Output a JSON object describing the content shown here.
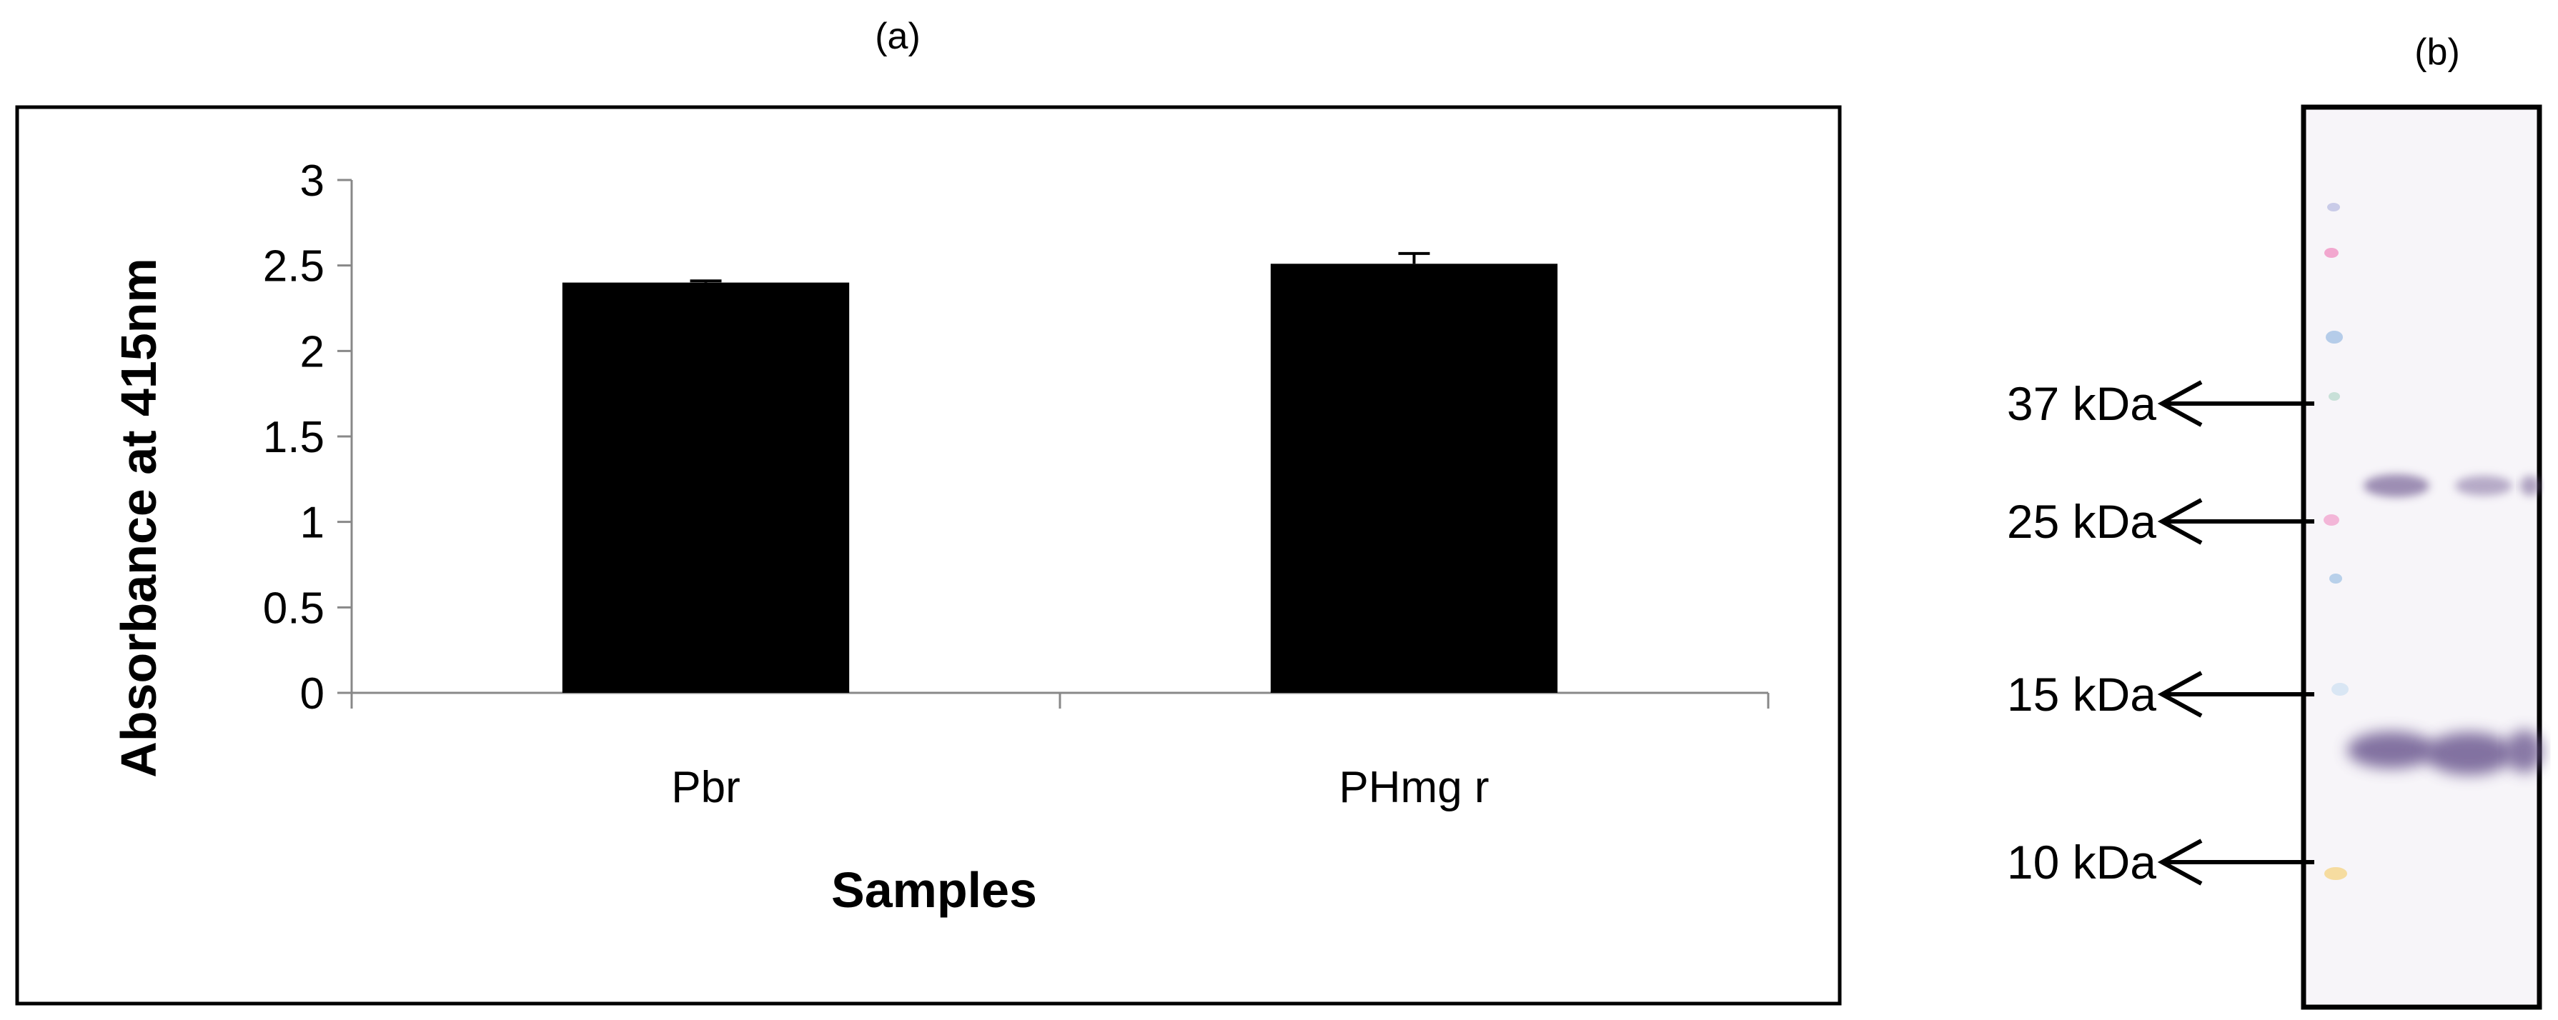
{
  "panel_a_label": "(a)",
  "panel_b_label": "(b)",
  "chart_data": {
    "type": "bar",
    "categories": [
      "Pbr",
      "PHmg r"
    ],
    "values": [
      2.4,
      2.51
    ],
    "errors": [
      0.01,
      0.06
    ],
    "title": "",
    "xlabel": "Samples",
    "ylabel": "Absorbance at 415nm",
    "ylim": [
      0,
      3
    ],
    "yticks": [
      "0",
      "0.5",
      "1",
      "1.5",
      "2",
      "2.5",
      "3"
    ],
    "grid": false,
    "legend": "none",
    "bar_color": "#000000"
  },
  "blot": {
    "markers": [
      {
        "label": "37 kDa"
      },
      {
        "label": "25 kDa"
      },
      {
        "label": "15 kDa"
      },
      {
        "label": "10 kDa"
      }
    ],
    "band_color": "#7a6a9a",
    "membrane_color": "#f7f5f9"
  }
}
